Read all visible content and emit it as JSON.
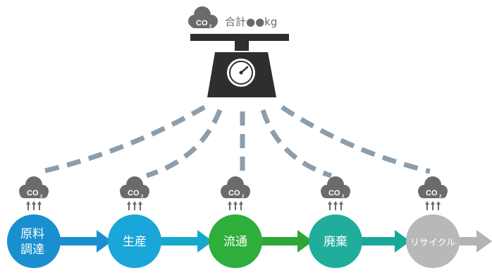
{
  "header": {
    "cloud_label": "CO",
    "cloud_subscript": "2",
    "total_text": "合計●●kg"
  },
  "scale_icon": "weighing-scale-icon",
  "emission_cloud": {
    "label": "CO",
    "subscript": "2",
    "icon": "co2-cloud-icon"
  },
  "stages": [
    {
      "id": "raw-materials",
      "line1": "原料",
      "line2": "調達",
      "color": "#1a8fd0"
    },
    {
      "id": "production",
      "line1": "生産",
      "line2": "",
      "color": "#1aa6d9"
    },
    {
      "id": "distribution",
      "line1": "流通",
      "line2": "",
      "color": "#2eae3a"
    },
    {
      "id": "disposal",
      "line1": "廃棄",
      "line2": "",
      "color": "#20ad9c"
    },
    {
      "id": "recycle",
      "line1": "リサイクル",
      "line2": "",
      "color": "#b8b8b8"
    }
  ],
  "colors": {
    "cloud": "#6b6b6b",
    "dashed_line": "#8c9dab",
    "scale": "#2e2e2e",
    "arrow_blue": "#1a8fd0",
    "arrow_teal": "#17a89a",
    "arrow_green": "#2ea63a",
    "arrow_gray": "#b3b3b3"
  }
}
